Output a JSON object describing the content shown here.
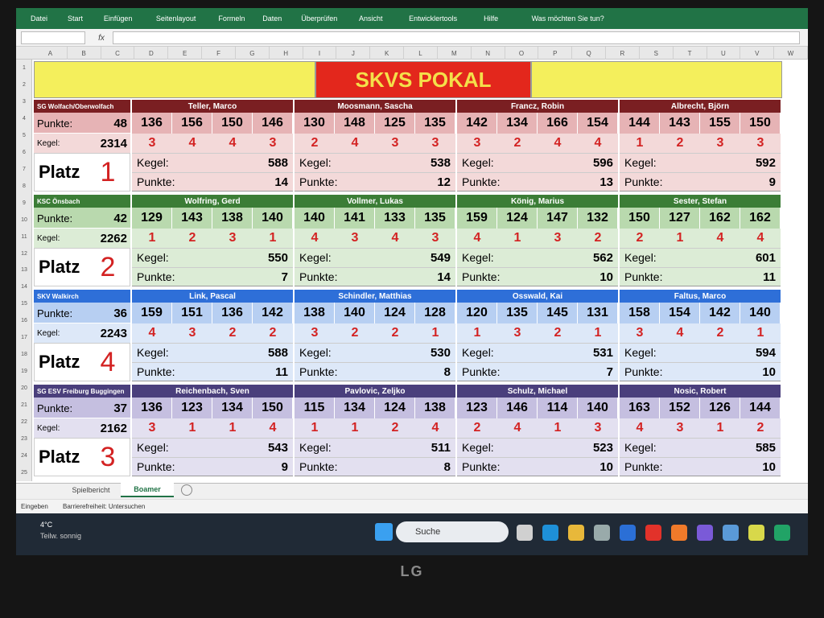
{
  "ribbon": {
    "tabs": [
      "Datei",
      "Start",
      "Einfügen",
      "Seitenlayout",
      "Formeln",
      "Daten",
      "Überprüfen",
      "Ansicht",
      "Entwicklertools",
      "Hilfe"
    ],
    "search": "Was möchten Sie tun?"
  },
  "formula_bar": {
    "fx": "fx"
  },
  "column_headers": [
    "A",
    "B",
    "C",
    "D",
    "E",
    "F",
    "G",
    "H",
    "I",
    "J",
    "K",
    "L",
    "M",
    "N",
    "O",
    "P",
    "Q",
    "R",
    "S",
    "T",
    "U",
    "V",
    "W"
  ],
  "row_headers": [
    "1",
    "2",
    "3",
    "4",
    "5",
    "6",
    "7",
    "8",
    "9",
    "10",
    "11",
    "12",
    "13",
    "14",
    "15",
    "16",
    "17",
    "18",
    "19",
    "20",
    "21",
    "22",
    "23",
    "24",
    "25"
  ],
  "title": "SKVS POKAL",
  "labels": {
    "punkte": "Punkte:",
    "kegel": "Kegel:",
    "platz": "Platz"
  },
  "teams": [
    {
      "name": "SG Wolfach/Oberwolfach",
      "punkte": 48,
      "kegel": 2314,
      "platz": 1,
      "header_color": "#7a1f22",
      "row_color": "#f3d9d9",
      "score_color": "#e6b3b5",
      "players": [
        {
          "name": "Teller, Marco",
          "scores": [
            136,
            156,
            150,
            146
          ],
          "points": [
            3,
            4,
            4,
            3
          ],
          "kegel": 588,
          "punkte": 14
        },
        {
          "name": "Moosmann, Sascha",
          "scores": [
            130,
            148,
            125,
            135
          ],
          "points": [
            2,
            4,
            3,
            3
          ],
          "kegel": 538,
          "punkte": 12
        },
        {
          "name": "Francz, Robin",
          "scores": [
            142,
            134,
            166,
            154
          ],
          "points": [
            3,
            2,
            4,
            4
          ],
          "kegel": 596,
          "punkte": 13
        },
        {
          "name": "Albrecht, Björn",
          "scores": [
            144,
            143,
            155,
            150
          ],
          "points": [
            1,
            2,
            3,
            3
          ],
          "kegel": 592,
          "punkte": 9
        }
      ]
    },
    {
      "name": "KSC Önsbach",
      "punkte": 42,
      "kegel": 2262,
      "platz": 2,
      "header_color": "#3b7d36",
      "row_color": "#dcecd6",
      "score_color": "#b9d9ae",
      "players": [
        {
          "name": "Wolfring, Gerd",
          "scores": [
            129,
            143,
            138,
            140
          ],
          "points": [
            1,
            2,
            3,
            1
          ],
          "kegel": 550,
          "punkte": 7
        },
        {
          "name": "Vollmer, Lukas",
          "scores": [
            140,
            141,
            133,
            135
          ],
          "points": [
            4,
            3,
            4,
            3
          ],
          "kegel": 549,
          "punkte": 14
        },
        {
          "name": "König, Marius",
          "scores": [
            159,
            124,
            147,
            132
          ],
          "points": [
            4,
            1,
            3,
            2
          ],
          "kegel": 562,
          "punkte": 10
        },
        {
          "name": "Sester, Stefan",
          "scores": [
            150,
            127,
            162,
            162
          ],
          "points": [
            2,
            1,
            4,
            4
          ],
          "kegel": 601,
          "punkte": 11
        }
      ]
    },
    {
      "name": "SKV Walkirch",
      "punkte": 36,
      "kegel": 2243,
      "platz": 4,
      "header_color": "#2e6fd8",
      "row_color": "#dde8f8",
      "score_color": "#b7cff2",
      "players": [
        {
          "name": "Link, Pascal",
          "scores": [
            159,
            151,
            136,
            142
          ],
          "points": [
            4,
            3,
            2,
            2
          ],
          "kegel": 588,
          "punkte": 11
        },
        {
          "name": "Schindler, Matthias",
          "scores": [
            138,
            140,
            124,
            128
          ],
          "points": [
            3,
            2,
            2,
            1
          ],
          "kegel": 530,
          "punkte": 8
        },
        {
          "name": "Osswald, Kai",
          "scores": [
            120,
            135,
            145,
            131
          ],
          "points": [
            1,
            3,
            2,
            1
          ],
          "kegel": 531,
          "punkte": 7
        },
        {
          "name": "Faltus, Marco",
          "scores": [
            158,
            154,
            142,
            140
          ],
          "points": [
            3,
            4,
            2,
            1
          ],
          "kegel": 594,
          "punkte": 10
        }
      ]
    },
    {
      "name": "SG ESV Freiburg Buggingen",
      "punkte": 37,
      "kegel": 2162,
      "platz": 3,
      "header_color": "#4a3f7c",
      "row_color": "#e3e0f0",
      "score_color": "#c5bfe0",
      "players": [
        {
          "name": "Reichenbach, Sven",
          "scores": [
            136,
            123,
            134,
            150
          ],
          "points": [
            3,
            1,
            1,
            4
          ],
          "kegel": 543,
          "punkte": 9
        },
        {
          "name": "Pavlovic, Zeljko",
          "scores": [
            115,
            134,
            124,
            138
          ],
          "points": [
            1,
            1,
            2,
            4
          ],
          "kegel": 511,
          "punkte": 8
        },
        {
          "name": "Schulz, Michael",
          "scores": [
            123,
            146,
            114,
            140
          ],
          "points": [
            2,
            4,
            1,
            3
          ],
          "kegel": 523,
          "punkte": 10
        },
        {
          "name": "Nosic, Robert",
          "scores": [
            163,
            152,
            126,
            144
          ],
          "points": [
            4,
            3,
            1,
            2
          ],
          "kegel": 585,
          "punkte": 10
        }
      ]
    }
  ],
  "sheet_tabs": [
    "Spielbericht",
    "Boamer"
  ],
  "status": [
    "Eingeben",
    "Barrierefreiheit: Untersuchen"
  ],
  "taskbar": {
    "temperature": "4°C",
    "weather": "Teilw. sonnig",
    "search": "Suche"
  },
  "monitor_brand": "LG"
}
